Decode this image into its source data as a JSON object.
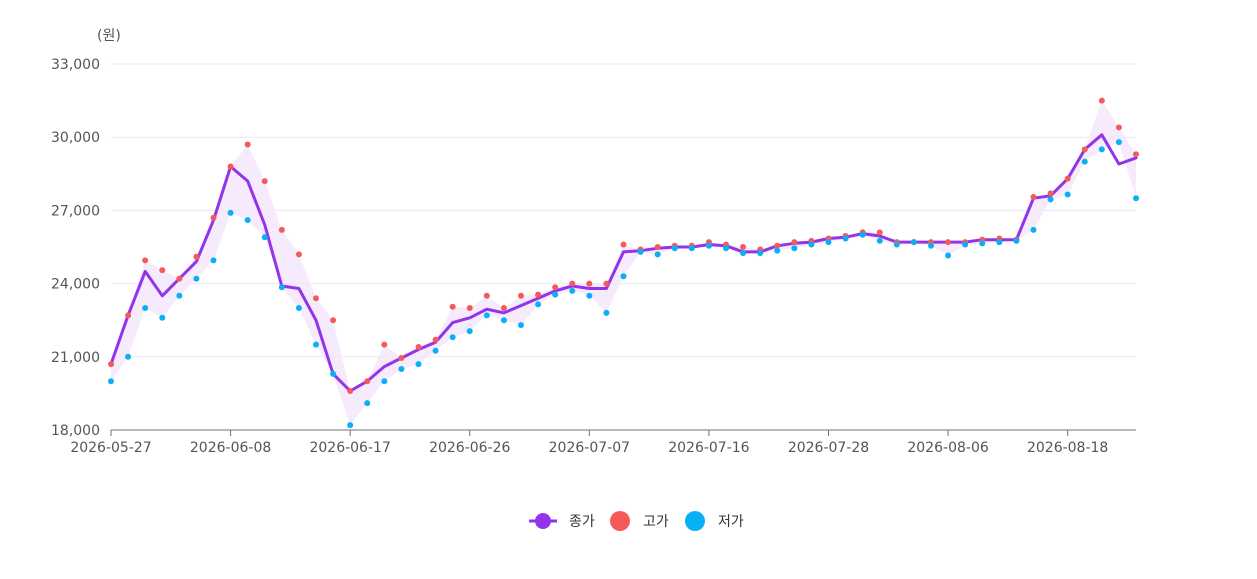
{
  "chart_data": {
    "type": "line",
    "unit_label": "(원)",
    "ylim": [
      18000,
      33000
    ],
    "yticks": [
      18000,
      21000,
      24000,
      27000,
      30000,
      33000
    ],
    "ytick_labels": [
      "18,000",
      "21,000",
      "24,000",
      "27,000",
      "30,000",
      "33,000"
    ],
    "xtick_labels": [
      "2026-05-27",
      "2026-06-08",
      "2026-06-17",
      "2026-06-26",
      "2026-07-07",
      "2026-07-16",
      "2026-07-28",
      "2026-08-06",
      "2026-08-18"
    ],
    "xtick_index": [
      0,
      7,
      14,
      21,
      28,
      35,
      42,
      49,
      56
    ],
    "grid": true,
    "legend_position": "bottom-center",
    "colors": {
      "close": "#9333ea",
      "high": "#f55a5a",
      "low": "#0ab0f5",
      "band": "#f3e8fd",
      "grid": "#e8e8f2",
      "axis": "#6b7280",
      "text": "#555555"
    },
    "series": [
      {
        "name": "종가",
        "values": [
          20700,
          22700,
          24500,
          23500,
          24200,
          24900,
          26600,
          28800,
          28200,
          26400,
          23900,
          23800,
          22500,
          20300,
          19600,
          20000,
          20600,
          20950,
          21300,
          21600,
          22400,
          22600,
          22950,
          22800,
          23100,
          23400,
          23700,
          23900,
          23800,
          23800,
          25300,
          25350,
          25450,
          25500,
          25500,
          25600,
          25550,
          25300,
          25300,
          25550,
          25650,
          25700,
          25850,
          25900,
          26050,
          25950,
          25700,
          25700,
          25700,
          25700,
          25700,
          25800,
          25800,
          25800,
          27500,
          27600,
          28300,
          29500,
          30100,
          28900,
          29150
        ]
      },
      {
        "name": "고가",
        "values": [
          20700,
          22700,
          24950,
          24550,
          24200,
          25100,
          26700,
          28800,
          29700,
          28200,
          26200,
          25200,
          23400,
          22500,
          19600,
          20000,
          21500,
          20950,
          21400,
          21700,
          23050,
          23000,
          23500,
          23000,
          23500,
          23550,
          23850,
          24000,
          24000,
          24000,
          25600,
          25400,
          25500,
          25550,
          25550,
          25700,
          25600,
          25500,
          25400,
          25550,
          25700,
          25750,
          25850,
          25950,
          26100,
          26100,
          25700,
          25700,
          25700,
          25700,
          25700,
          25800,
          25850,
          25800,
          27550,
          27700,
          28300,
          29500,
          31500,
          30400,
          29300
        ]
      },
      {
        "name": "저가",
        "values": [
          20000,
          21000,
          23000,
          22600,
          23500,
          24200,
          24950,
          26900,
          26600,
          25900,
          23850,
          23000,
          21500,
          20300,
          18200,
          19100,
          20000,
          20500,
          20700,
          21250,
          21800,
          22050,
          22700,
          22500,
          22300,
          23150,
          23550,
          23700,
          23500,
          22800,
          24300,
          25300,
          25200,
          25450,
          25450,
          25550,
          25450,
          25250,
          25250,
          25350,
          25450,
          25600,
          25700,
          25850,
          26000,
          25750,
          25600,
          25700,
          25550,
          25150,
          25600,
          25650,
          25700,
          25750,
          26200,
          27450,
          27650,
          29000,
          29500,
          29800,
          27500
        ]
      }
    ]
  }
}
